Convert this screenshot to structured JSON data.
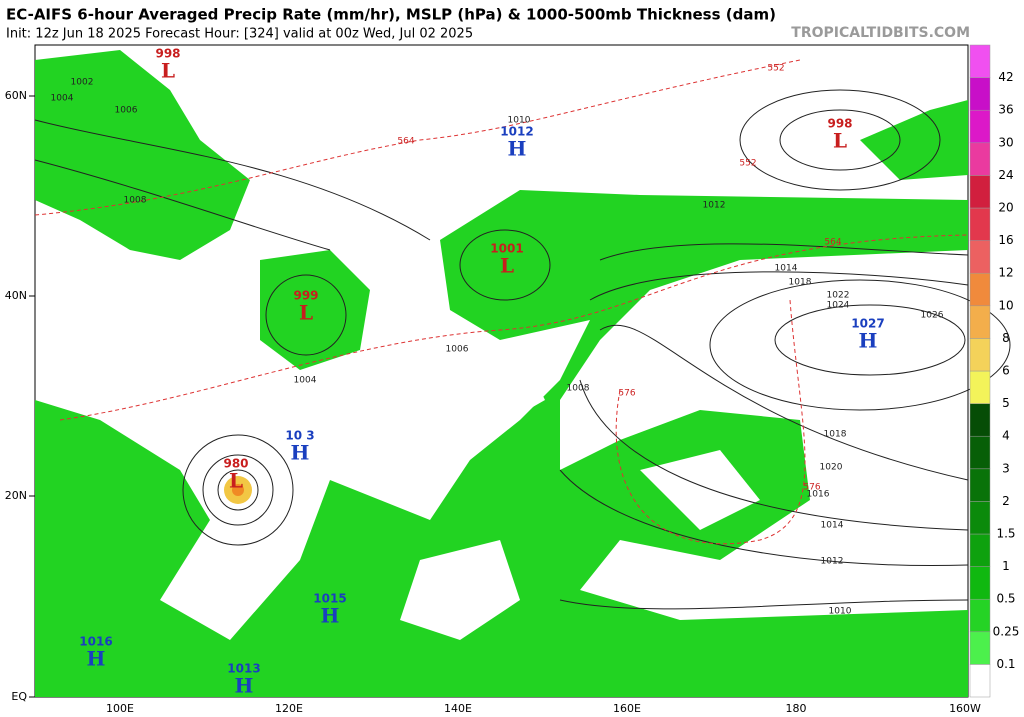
{
  "header": {
    "title": "EC-AIFS 6-hour Averaged Precip Rate (mm/hr), MSLP (hPa) & 1000-500mb Thickness (dam)",
    "subtitle": "Init: 12z Jun 18 2025   Forecast Hour: [324]   valid at 00z Wed, Jul 02 2025",
    "credit": "TROPICALTIDBITS.COM"
  },
  "axes": {
    "lat": [
      "60N",
      "40N",
      "20N",
      "EQ"
    ],
    "lon": [
      "100E",
      "120E",
      "140E",
      "160E",
      "180",
      "160W"
    ]
  },
  "colorbar": {
    "labels": [
      "0.1",
      "0.25",
      "0.5",
      "1",
      "1.5",
      "2",
      "3",
      "4",
      "5",
      "6",
      "8",
      "10",
      "12",
      "16",
      "20",
      "24",
      "30",
      "36",
      "42"
    ]
  },
  "systems": [
    {
      "type": "L",
      "pressure": "998"
    },
    {
      "type": "L",
      "pressure": "998"
    },
    {
      "type": "H",
      "pressure": "1012"
    },
    {
      "type": "L",
      "pressure": "1001"
    },
    {
      "type": "L",
      "pressure": "999"
    },
    {
      "type": "H",
      "pressure": "1027"
    },
    {
      "type": "H",
      "pressure": "10 3"
    },
    {
      "type": "L",
      "pressure": "980"
    },
    {
      "type": "H",
      "pressure": "1015"
    },
    {
      "type": "H",
      "pressure": "1016"
    },
    {
      "type": "H",
      "pressure": "1013"
    }
  ],
  "contour_labels": [
    "1002",
    "1004",
    "1006",
    "1008",
    "1010",
    "1012",
    "1014",
    "1018",
    "1022",
    "1024",
    "1026",
    "1020",
    "1018",
    "1016",
    "1014",
    "1012",
    "1010",
    "1008",
    "1006",
    "1004"
  ],
  "thickness_labels": [
    "552",
    "564",
    "576",
    "552",
    "564",
    "576"
  ]
}
